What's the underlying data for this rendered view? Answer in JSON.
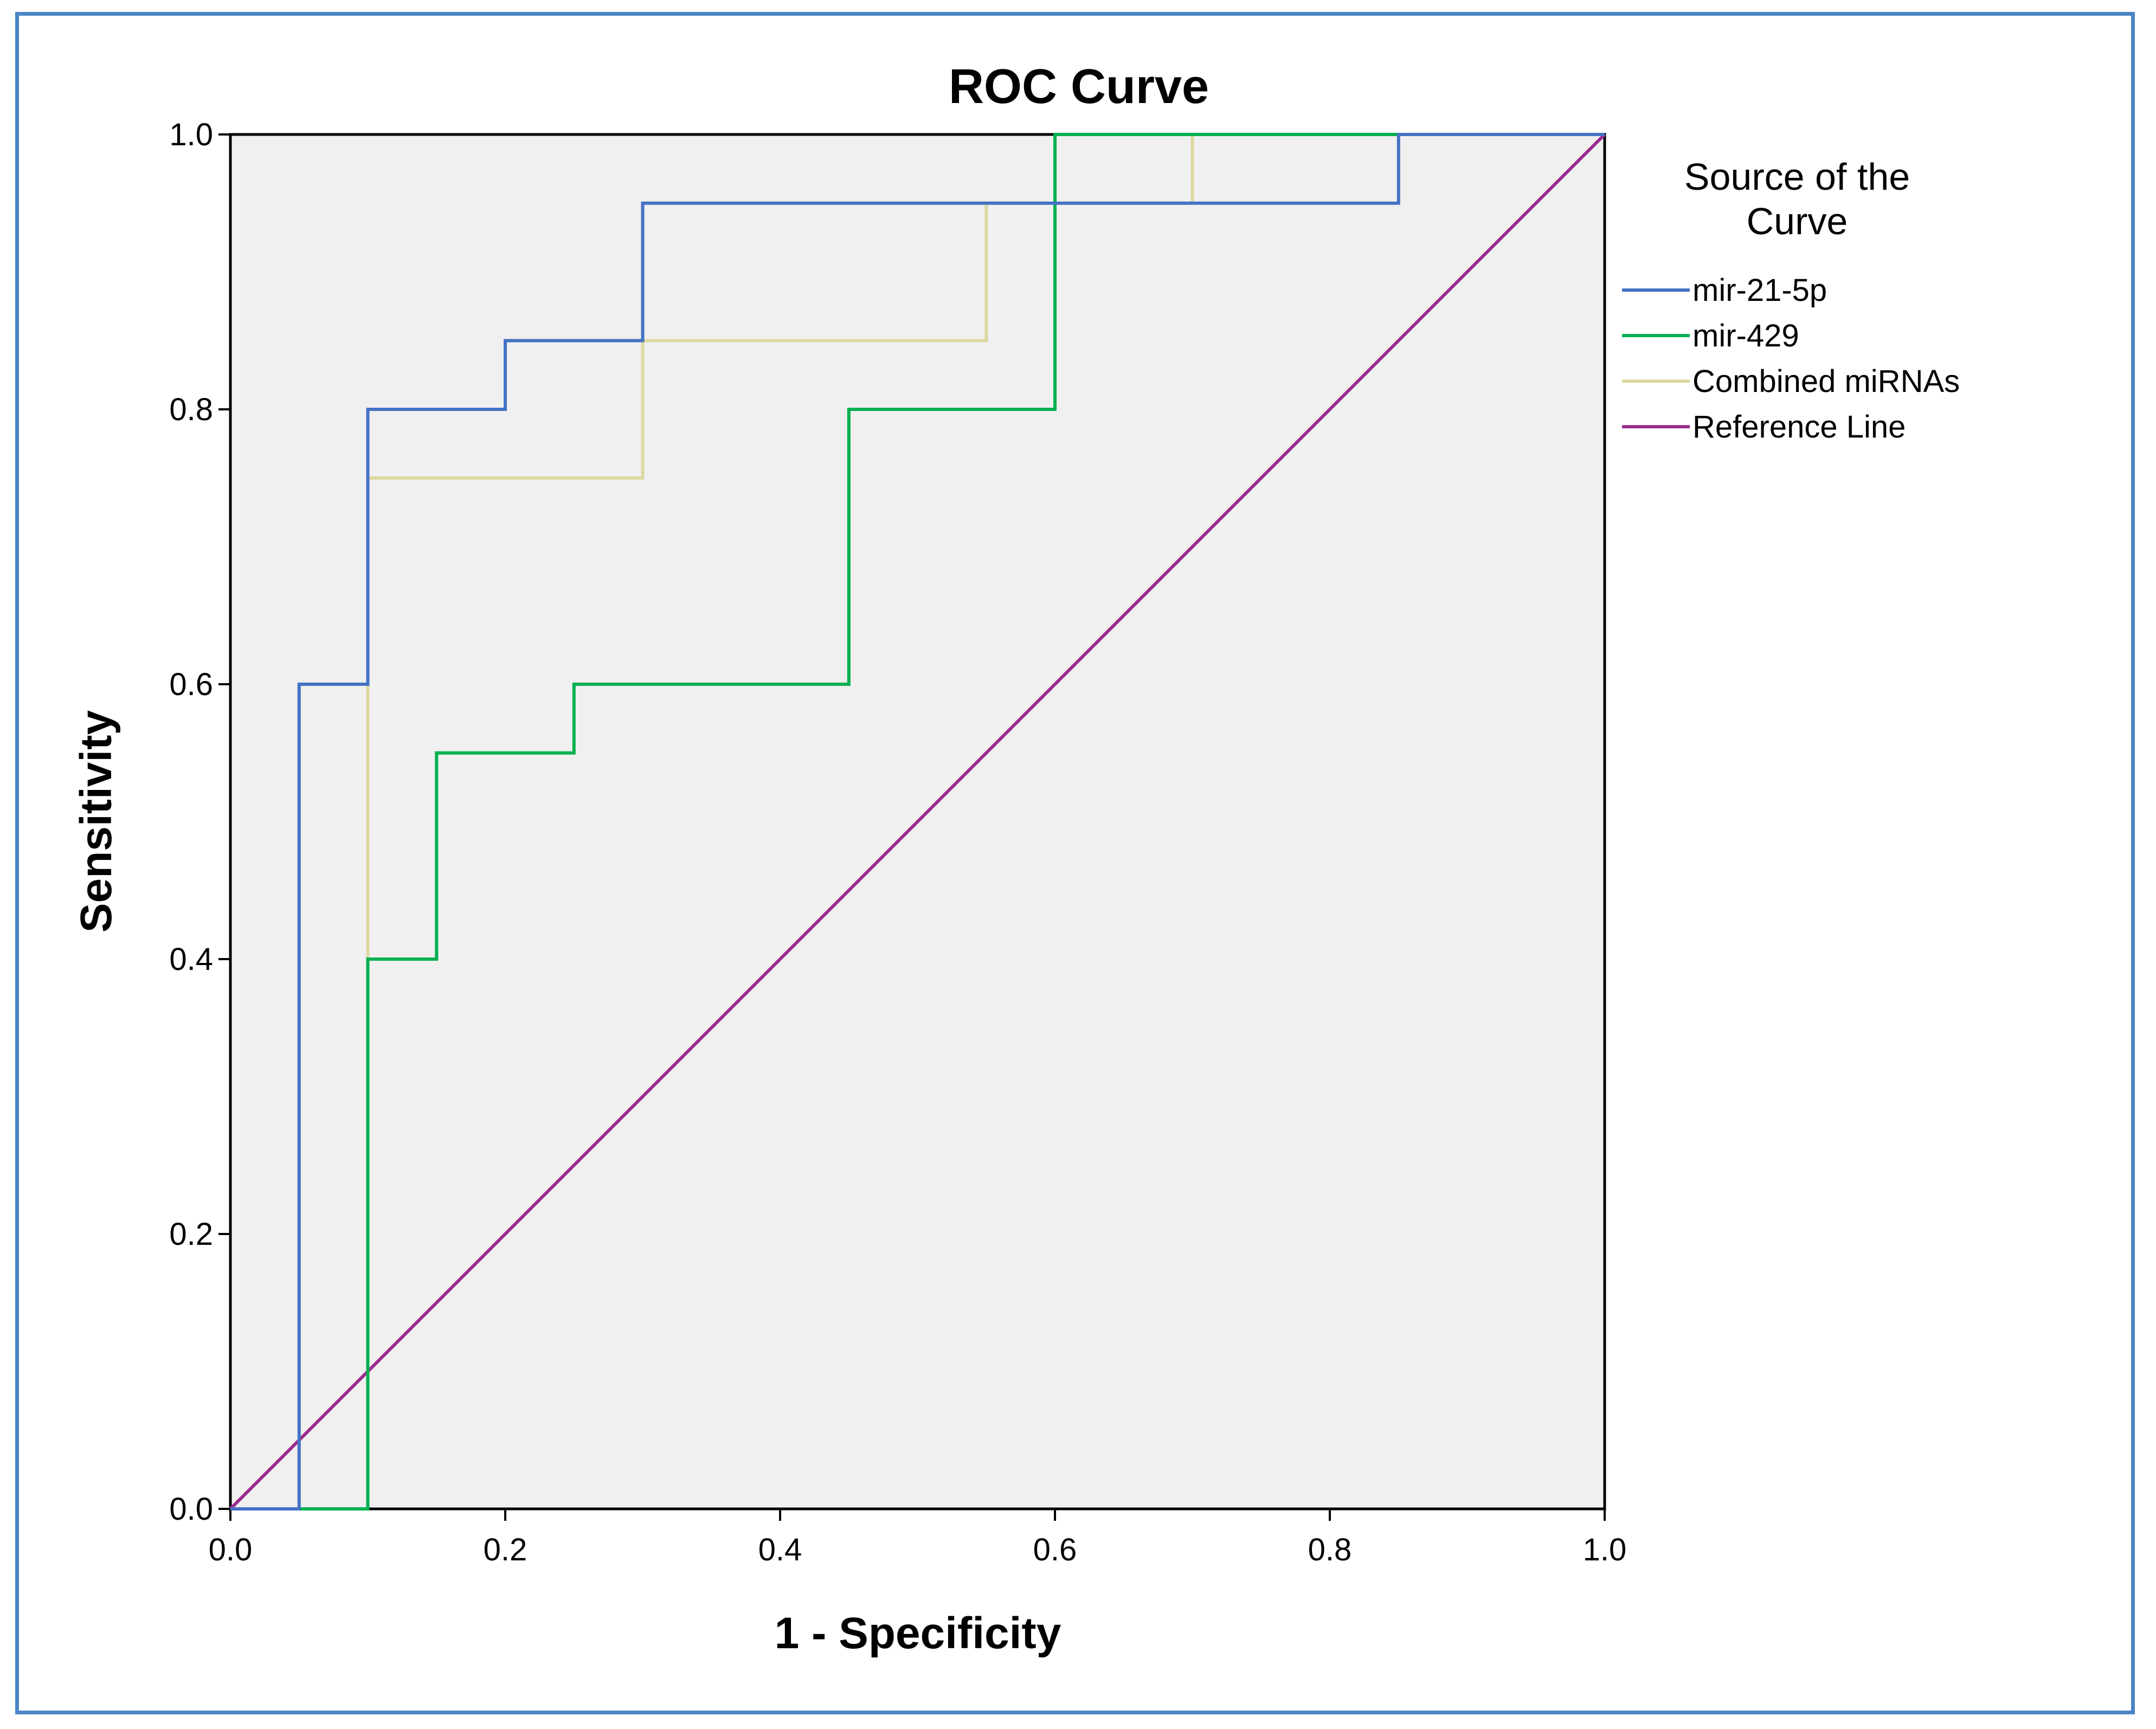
{
  "chart_data": {
    "type": "line",
    "title": "ROC Curve",
    "xlabel": "1 - Specificity",
    "ylabel": "Sensitivity",
    "xlim": [
      0.0,
      1.0
    ],
    "ylim": [
      0.0,
      1.0
    ],
    "xticks": [
      "0.0",
      "0.2",
      "0.4",
      "0.6",
      "0.8",
      "1.0"
    ],
    "yticks": [
      "0.0",
      "0.2",
      "0.4",
      "0.6",
      "0.8",
      "1.0"
    ],
    "grid": false,
    "legend": {
      "title_line1": "Source of the",
      "title_line2": "Curve",
      "position": "right"
    },
    "series": [
      {
        "name": "mir-21-5p",
        "color": "#4472c4",
        "step": true,
        "x": [
          0.0,
          0.05,
          0.05,
          0.1,
          0.1,
          0.2,
          0.2,
          0.3,
          0.3,
          0.85,
          0.85,
          1.0
        ],
        "y": [
          0.0,
          0.0,
          0.6,
          0.6,
          0.8,
          0.8,
          0.85,
          0.85,
          0.95,
          0.95,
          1.0,
          1.0
        ]
      },
      {
        "name": "mir-429",
        "color": "#00b050",
        "step": true,
        "x": [
          0.0,
          0.1,
          0.1,
          0.15,
          0.15,
          0.25,
          0.25,
          0.45,
          0.45,
          0.6,
          0.6,
          1.0
        ],
        "y": [
          0.0,
          0.0,
          0.4,
          0.4,
          0.55,
          0.55,
          0.6,
          0.6,
          0.8,
          0.8,
          1.0,
          1.0
        ]
      },
      {
        "name": "Combined miRNAs",
        "color": "#ddd8a0",
        "step": true,
        "x": [
          0.0,
          0.1,
          0.1,
          0.3,
          0.3,
          0.55,
          0.55,
          0.7,
          0.7,
          1.0
        ],
        "y": [
          0.0,
          0.0,
          0.75,
          0.75,
          0.85,
          0.85,
          0.95,
          0.95,
          1.0,
          1.0
        ]
      },
      {
        "name": "Reference Line",
        "color": "#9b2d8f",
        "step": false,
        "x": [
          0.0,
          1.0
        ],
        "y": [
          0.0,
          1.0
        ]
      }
    ]
  },
  "colors": {
    "plot_background": "#f0f0f0",
    "frame_border": "#4a86c5"
  }
}
